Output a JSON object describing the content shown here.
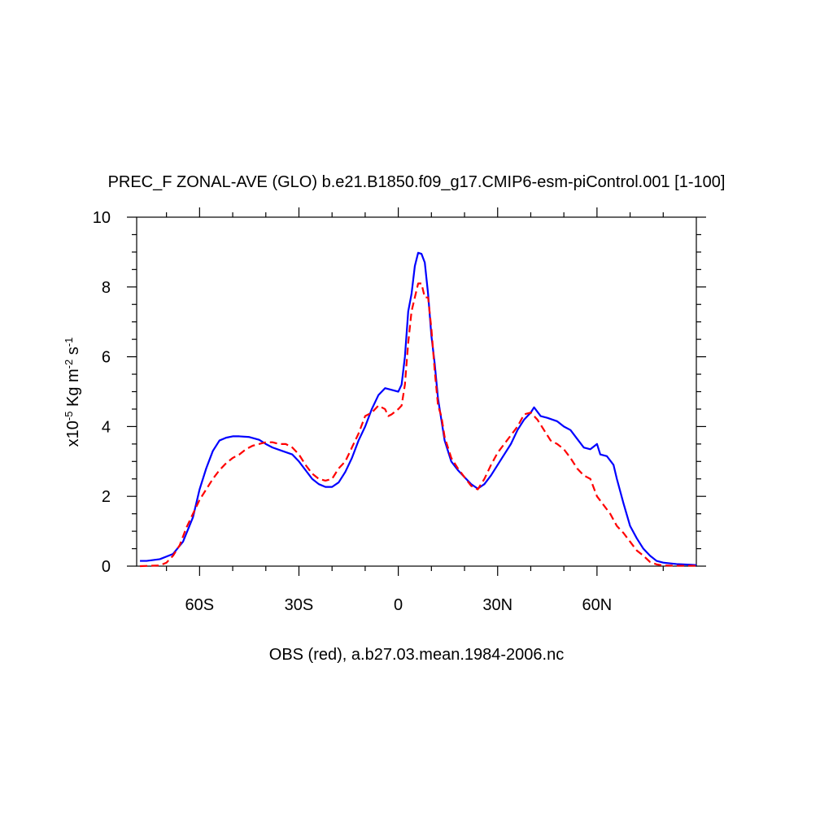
{
  "chart_data": {
    "type": "line",
    "title": "PREC_F ZONAL-AVE (GLO) b.e21.B1850.f09_g17.CMIP6-esm-piControl.001 [1-100]",
    "x_label": "OBS (red), a.b27.03.mean.1984-2006.nc",
    "y_label": [
      {
        "text": "x10",
        "sup": false
      },
      {
        "text": "-5",
        "sup": true
      },
      {
        "text": " Kg m",
        "sup": false
      },
      {
        "text": "-2",
        "sup": true
      },
      {
        "text": " s",
        "sup": false
      },
      {
        "text": "-1",
        "sup": true
      }
    ],
    "xlim": [
      -79,
      90
    ],
    "ylim": [
      0,
      10
    ],
    "xticks": [
      {
        "value": -60,
        "label": "60S"
      },
      {
        "value": -30,
        "label": "30S"
      },
      0,
      {
        "value": 30,
        "label": "30N"
      },
      {
        "value": 60,
        "label": "60N"
      }
    ],
    "yticks": [
      0,
      2,
      4,
      6,
      8,
      10
    ],
    "xminorticks": [
      -70,
      -50,
      -40,
      -20,
      -10,
      10,
      20,
      40,
      50,
      70,
      80
    ],
    "yminorticks": [
      0.5,
      1,
      1.5,
      2.5,
      3,
      3.5,
      4.5,
      5,
      5.5,
      6.5,
      7,
      7.5,
      8.5,
      9,
      9.5
    ],
    "grid": false,
    "series": [
      {
        "color": "#0000ff",
        "dash": false,
        "x": [
          -78,
          -76,
          -72,
          -68,
          -65,
          -62,
          -60,
          -58,
          -56,
          -54,
          -52,
          -50,
          -48,
          -45,
          -42,
          -40,
          -38,
          -35,
          -32,
          -30,
          -28,
          -26,
          -24,
          -22,
          -20,
          -18,
          -16,
          -14,
          -12,
          -10,
          -8,
          -6,
          -4,
          -2,
          0,
          1,
          2,
          3,
          4,
          5,
          6,
          7,
          8,
          9,
          10,
          11,
          12,
          13,
          14,
          16,
          18,
          20,
          22,
          24,
          26,
          28,
          30,
          32,
          34,
          36,
          38,
          40,
          41,
          43,
          45,
          48,
          50,
          52,
          54,
          56,
          58,
          60,
          61,
          63,
          65,
          66,
          68,
          70,
          72,
          74,
          76,
          78,
          80,
          84,
          88,
          90
        ],
        "values": [
          0.15,
          0.15,
          0.2,
          0.35,
          0.7,
          1.4,
          2.2,
          2.8,
          3.3,
          3.6,
          3.68,
          3.72,
          3.72,
          3.7,
          3.62,
          3.5,
          3.4,
          3.3,
          3.2,
          3.0,
          2.75,
          2.5,
          2.35,
          2.27,
          2.27,
          2.4,
          2.7,
          3.1,
          3.6,
          4.0,
          4.5,
          4.9,
          5.1,
          5.05,
          5.0,
          5.2,
          6.0,
          7.3,
          7.8,
          8.6,
          8.98,
          8.95,
          8.7,
          7.8,
          6.6,
          5.8,
          4.8,
          4.2,
          3.6,
          3.0,
          2.75,
          2.55,
          2.35,
          2.22,
          2.35,
          2.6,
          2.9,
          3.2,
          3.5,
          3.9,
          4.2,
          4.4,
          4.55,
          4.3,
          4.25,
          4.15,
          4.0,
          3.9,
          3.65,
          3.4,
          3.35,
          3.5,
          3.2,
          3.15,
          2.9,
          2.5,
          1.8,
          1.15,
          0.8,
          0.5,
          0.3,
          0.15,
          0.1,
          0.06,
          0.04,
          0.03
        ]
      },
      {
        "color": "#ff0000",
        "dash": true,
        "x": [
          -78,
          -72,
          -70,
          -68,
          -66,
          -64,
          -62,
          -60,
          -58,
          -56,
          -54,
          -52,
          -50,
          -48,
          -46,
          -44,
          -42,
          -40,
          -38,
          -36,
          -34,
          -32,
          -30,
          -28,
          -26,
          -24,
          -22,
          -20,
          -18,
          -16,
          -14,
          -12,
          -10,
          -8,
          -6,
          -4,
          -3,
          -2,
          0,
          1,
          2,
          3,
          4,
          5,
          6,
          7,
          8,
          9,
          10,
          11,
          12,
          13,
          14,
          16,
          18,
          20,
          22,
          24,
          26,
          28,
          30,
          32,
          34,
          36,
          38,
          40,
          42,
          44,
          46,
          48,
          50,
          52,
          54,
          56,
          58,
          60,
          62,
          64,
          66,
          68,
          70,
          72,
          74,
          76,
          78,
          80,
          84,
          90
        ],
        "values": [
          0.0,
          0.02,
          0.1,
          0.3,
          0.6,
          1.1,
          1.5,
          1.9,
          2.2,
          2.5,
          2.75,
          2.95,
          3.1,
          3.2,
          3.35,
          3.45,
          3.5,
          3.55,
          3.55,
          3.5,
          3.5,
          3.4,
          3.2,
          2.9,
          2.65,
          2.5,
          2.45,
          2.5,
          2.8,
          3.0,
          3.4,
          3.8,
          4.3,
          4.4,
          4.6,
          4.5,
          4.3,
          4.35,
          4.5,
          4.6,
          5.2,
          6.4,
          7.3,
          7.7,
          8.1,
          8.1,
          7.7,
          7.7,
          6.8,
          5.6,
          4.6,
          4.3,
          3.7,
          3.1,
          2.8,
          2.55,
          2.3,
          2.2,
          2.5,
          2.9,
          3.25,
          3.5,
          3.75,
          4.0,
          4.35,
          4.4,
          4.2,
          3.9,
          3.6,
          3.5,
          3.35,
          3.1,
          2.8,
          2.6,
          2.5,
          2.0,
          1.75,
          1.5,
          1.15,
          0.95,
          0.7,
          0.45,
          0.3,
          0.12,
          0.05,
          0.02,
          0.01,
          0.01
        ]
      }
    ]
  }
}
